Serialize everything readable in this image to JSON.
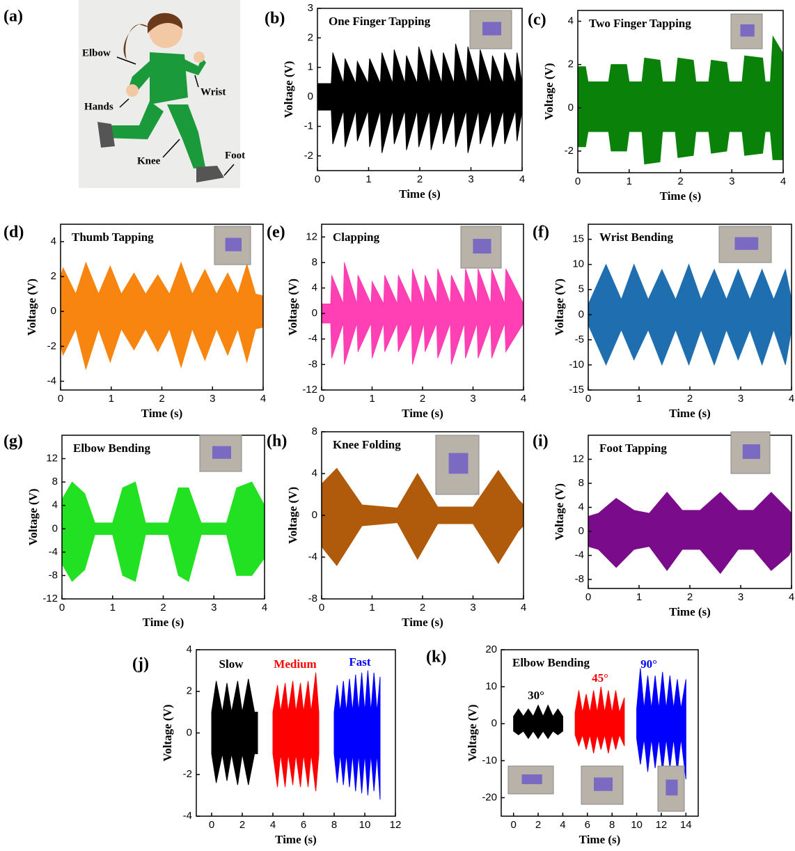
{
  "panel_a": {
    "label": "(a)",
    "body_labels": [
      "Elbow",
      "Wrist",
      "Hands",
      "Knee",
      "Foot"
    ]
  },
  "chart_data": [
    {
      "type": "area",
      "label": "(b)",
      "title": "One Finger Tapping",
      "xlabel": "Time (s)",
      "ylabel": "Voltage (V)",
      "xlim": [
        0,
        4
      ],
      "xticks": [
        0,
        1,
        2,
        3,
        4
      ],
      "ylim": [
        -2.5,
        3
      ],
      "yticks": [
        -2,
        -1,
        0,
        1,
        2,
        3
      ],
      "series": [
        {
          "color": "#000000",
          "x": [
            0,
            0.27,
            0.3,
            0.51,
            0.54,
            0.75,
            0.78,
            0.99,
            1.02,
            1.23,
            1.26,
            1.47,
            1.5,
            1.71,
            1.74,
            1.95,
            1.98,
            2.19,
            2.22,
            2.43,
            2.46,
            2.67,
            2.7,
            2.91,
            2.94,
            3.15,
            3.18,
            3.39,
            3.42,
            3.63,
            3.66,
            3.87,
            3.9,
            4
          ],
          "upper": [
            0.45,
            0.45,
            1.5,
            0.45,
            1.3,
            0.45,
            1.2,
            0.45,
            1.3,
            0.45,
            1.5,
            0.45,
            1.6,
            0.45,
            1.4,
            0.45,
            1.7,
            0.45,
            1.6,
            0.45,
            1.5,
            0.45,
            1.8,
            0.45,
            1.7,
            0.45,
            1.6,
            0.45,
            1.4,
            0.45,
            1.5,
            0.45,
            1.5,
            0.45
          ],
          "lower": [
            -0.45,
            -0.45,
            -1.6,
            -0.45,
            -1.7,
            -0.45,
            -1.5,
            -0.45,
            -1.7,
            -0.45,
            -1.9,
            -0.45,
            -1.6,
            -0.45,
            -1.8,
            -0.45,
            -1.7,
            -0.45,
            -1.8,
            -0.45,
            -1.6,
            -0.45,
            -1.7,
            -0.45,
            -1.9,
            -0.45,
            -1.6,
            -0.45,
            -1.7,
            -0.45,
            -1.6,
            -0.45,
            -1.5,
            -0.45
          ]
        }
      ]
    },
    {
      "type": "area",
      "label": "(c)",
      "title": "Two Finger Tapping",
      "xlabel": "Time (s)",
      "ylabel": "Voltage (V)",
      "xlim": [
        0,
        4
      ],
      "xticks": [
        0,
        1,
        2,
        3,
        4
      ],
      "ylim": [
        -3,
        4.5
      ],
      "yticks": [
        -2,
        0,
        2,
        4
      ],
      "series": [
        {
          "color": "#0a820a",
          "x": [
            0,
            0.15,
            0.2,
            0.6,
            0.65,
            0.95,
            1.0,
            1.25,
            1.3,
            1.6,
            1.65,
            1.9,
            1.95,
            2.25,
            2.3,
            2.55,
            2.6,
            2.9,
            2.95,
            3.2,
            3.25,
            3.6,
            3.65,
            3.75,
            3.8,
            4
          ],
          "upper": [
            1.9,
            1.9,
            1.2,
            1.2,
            2.0,
            2.0,
            1.2,
            1.2,
            2.3,
            2.2,
            1.2,
            1.2,
            2.3,
            2.2,
            1.2,
            1.2,
            2.2,
            2.1,
            1.2,
            1.2,
            2.4,
            2.3,
            1.2,
            1.2,
            3.3,
            2.5
          ],
          "lower": [
            -1.8,
            -1.8,
            -1.1,
            -1.1,
            -2.0,
            -2.0,
            -1.1,
            -1.1,
            -2.6,
            -2.5,
            -1.1,
            -1.1,
            -2.3,
            -2.2,
            -1.1,
            -1.1,
            -2.1,
            -2.0,
            -1.1,
            -1.1,
            -2.2,
            -2.1,
            -1.1,
            -1.1,
            -2.4,
            -2.4
          ]
        }
      ]
    },
    {
      "type": "area",
      "label": "(d)",
      "title": "Thumb Tapping",
      "xlabel": "Time (s)",
      "ylabel": "Voltage (V)",
      "xlim": [
        0,
        4
      ],
      "xticks": [
        0,
        1,
        2,
        3,
        4
      ],
      "ylim": [
        -4.5,
        5
      ],
      "yticks": [
        -4,
        -2,
        0,
        2,
        4
      ],
      "series": [
        {
          "color": "#f7850f",
          "x": [
            0,
            0.05,
            0.3,
            0.5,
            0.75,
            0.98,
            1.2,
            1.45,
            1.68,
            1.92,
            2.15,
            2.38,
            2.6,
            2.85,
            3.08,
            3.3,
            3.5,
            3.68,
            3.85,
            4
          ],
          "upper": [
            2,
            2.5,
            1,
            2.8,
            1,
            2.6,
            1,
            2.2,
            1,
            2.1,
            1,
            2.8,
            1,
            2.4,
            1,
            2.2,
            1,
            2.7,
            1,
            0.9
          ],
          "lower": [
            -2,
            -2.5,
            -1,
            -3.3,
            -1,
            -2.9,
            -1,
            -2.2,
            -1,
            -2.3,
            -1,
            -3.2,
            -1,
            -2.8,
            -1,
            -2.5,
            -1,
            -2.9,
            -1,
            -0.9
          ]
        }
      ]
    },
    {
      "type": "area",
      "label": "(e)",
      "title": "Clapping",
      "xlabel": "Time (s)",
      "ylabel": "Voltage (V)",
      "xlim": [
        0,
        4
      ],
      "xticks": [
        0,
        1,
        2,
        3,
        4
      ],
      "ylim": [
        -12,
        14
      ],
      "yticks": [
        -12,
        -8,
        -4,
        0,
        4,
        8,
        12
      ],
      "series": [
        {
          "color": "#ff3fb4",
          "x": [
            0,
            0.18,
            0.2,
            0.43,
            0.45,
            0.7,
            0.72,
            0.98,
            1.0,
            1.23,
            1.25,
            1.5,
            1.52,
            1.78,
            1.8,
            2.03,
            2.05,
            2.28,
            2.3,
            2.55,
            2.57,
            2.83,
            2.85,
            3.08,
            3.1,
            3.35,
            3.37,
            3.63,
            3.65,
            4
          ],
          "upper": [
            1.5,
            1.5,
            6,
            1.5,
            8,
            1.5,
            6,
            1.5,
            5,
            1.5,
            6,
            1.5,
            6,
            1.5,
            7,
            1.5,
            6,
            1.5,
            7,
            1.5,
            6,
            1.5,
            7,
            1.5,
            7,
            1.5,
            7,
            1.5,
            7,
            1.5
          ],
          "lower": [
            -1.5,
            -1.5,
            -7,
            -1.5,
            -8,
            -1.5,
            -6,
            -1.5,
            -7,
            -1.5,
            -6,
            -1.5,
            -6,
            -1.5,
            -8,
            -1.5,
            -6,
            -1.5,
            -7,
            -1.5,
            -8,
            -1.5,
            -7,
            -1.5,
            -7,
            -1.5,
            -7,
            -1.5,
            -6,
            -1.5
          ]
        }
      ]
    },
    {
      "type": "area",
      "label": "(f)",
      "title": "Wrist Bending",
      "xlabel": "Time (s)",
      "ylabel": "Voltage (V)",
      "xlim": [
        0,
        4
      ],
      "xticks": [
        0,
        1,
        2,
        3,
        4
      ],
      "ylim": [
        -15,
        18
      ],
      "yticks": [
        -15,
        -10,
        -5,
        0,
        5,
        10,
        15
      ],
      "series": [
        {
          "color": "#1f6fb0",
          "x": [
            0,
            0.35,
            0.65,
            0.9,
            1.18,
            1.45,
            1.72,
            1.98,
            2.22,
            2.48,
            2.72,
            2.95,
            3.18,
            3.42,
            3.65,
            3.88,
            4
          ],
          "upper": [
            2,
            10,
            3,
            10,
            3,
            9,
            3,
            10,
            3,
            9,
            3,
            9,
            3,
            9,
            3,
            9,
            3
          ],
          "lower": [
            -2,
            -10,
            -3,
            -9,
            -3,
            -10,
            -3,
            -10,
            -3,
            -10,
            -3,
            -9,
            -3,
            -10,
            -3,
            -10,
            -3
          ]
        }
      ]
    },
    {
      "type": "area",
      "label": "(g)",
      "title": "Elbow Bending",
      "xlabel": "Time (s)",
      "ylabel": "Voltage (V)",
      "xlim": [
        0,
        4
      ],
      "xticks": [
        0,
        1,
        2,
        3,
        4
      ],
      "ylim": [
        -12,
        16
      ],
      "yticks": [
        -12,
        -8,
        -4,
        0,
        4,
        8,
        12
      ],
      "series": [
        {
          "color": "#22e022",
          "x": [
            0,
            0.2,
            0.45,
            0.65,
            1.0,
            1.2,
            1.45,
            1.65,
            2.1,
            2.3,
            2.5,
            2.75,
            3.25,
            3.45,
            3.75,
            4
          ],
          "upper": [
            5,
            8,
            6,
            1,
            1,
            7,
            8,
            1,
            1,
            7,
            7,
            1,
            1,
            7,
            8,
            4
          ],
          "lower": [
            -6,
            -9,
            -7,
            -1,
            -1,
            -8,
            -9,
            -1,
            -1,
            -8,
            -9,
            -1,
            -1,
            -8,
            -8,
            -5
          ]
        }
      ]
    },
    {
      "type": "area",
      "label": "(h)",
      "title": "Knee Folding",
      "xlabel": "Time (s)",
      "ylabel": "Voltage (V)",
      "xlim": [
        0,
        4
      ],
      "xticks": [
        0,
        1,
        2,
        3,
        4
      ],
      "ylim": [
        -8,
        8
      ],
      "yticks": [
        -8,
        -4,
        0,
        4,
        8
      ],
      "series": [
        {
          "color": "#b05a0c",
          "x": [
            0,
            0.3,
            0.8,
            1.5,
            1.9,
            2.3,
            3.0,
            3.5,
            3.9,
            4
          ],
          "upper": [
            3,
            4.5,
            1,
            0.7,
            4,
            0.8,
            0.8,
            4.3,
            1.5,
            1
          ],
          "lower": [
            -3,
            -4.8,
            -1,
            -0.7,
            -4.2,
            -0.8,
            -0.8,
            -4.6,
            -1.5,
            -1
          ]
        }
      ]
    },
    {
      "type": "area",
      "label": "(i)",
      "title": "Foot Tapping",
      "xlabel": "Time (s)",
      "ylabel": "Voltage (V)",
      "xlim": [
        0,
        4
      ],
      "xticks": [
        0,
        1,
        2,
        3,
        4
      ],
      "ylim": [
        -9.5,
        16
      ],
      "yticks": [
        -8,
        -4,
        0,
        4,
        8,
        12
      ],
      "series": [
        {
          "color": "#7a0c8c",
          "x": [
            0,
            0.2,
            0.55,
            0.9,
            1.2,
            1.55,
            1.85,
            2.2,
            2.6,
            2.95,
            3.25,
            3.6,
            3.95,
            4
          ],
          "upper": [
            2.5,
            3,
            5.5,
            3.5,
            3,
            6.5,
            3.5,
            3.5,
            6.5,
            3.5,
            3.5,
            6.5,
            3.5,
            3
          ],
          "lower": [
            -2.5,
            -3,
            -6,
            -3,
            -2.5,
            -6.5,
            -3,
            -3,
            -7,
            -3,
            -3,
            -6.5,
            -4,
            -3
          ]
        }
      ]
    },
    {
      "type": "area",
      "label": "(j)",
      "xlabel": "Time (s)",
      "ylabel": "Voltage (V)",
      "xlim": [
        -1,
        12
      ],
      "xticks": [
        0,
        2,
        4,
        6,
        8,
        10,
        12
      ],
      "ylim": [
        -4,
        4
      ],
      "yticks": [
        -4,
        -2,
        0,
        2,
        4
      ],
      "series": [
        {
          "name": "Slow",
          "color": "#000000",
          "x": [
            0,
            0.3,
            0.7,
            1.0,
            1.3,
            1.7,
            2.0,
            2.4,
            2.8,
            3
          ],
          "upper": [
            1.0,
            2.5,
            1.0,
            2.4,
            1.0,
            2.5,
            1.0,
            2.6,
            1.0,
            1.0
          ],
          "lower": [
            -1,
            -2.4,
            -1,
            -2.3,
            -1,
            -2.5,
            -1,
            -2.5,
            -1,
            -1
          ]
        },
        {
          "name": "Medium",
          "color": "#ff0000",
          "x": [
            4,
            4.3,
            4.5,
            4.8,
            5.0,
            5.3,
            5.5,
            5.8,
            6.0,
            6.3,
            6.5,
            6.8,
            7
          ],
          "upper": [
            1,
            2.3,
            1,
            2.4,
            1,
            2.5,
            1,
            2.4,
            1,
            2.5,
            1,
            2.9,
            1
          ],
          "lower": [
            -1,
            -2.6,
            -1,
            -2.6,
            -1,
            -2.5,
            -1,
            -2.6,
            -1,
            -2.6,
            -1,
            -2.8,
            -1
          ]
        },
        {
          "name": "Fast",
          "color": "#0000ff",
          "x": [
            8,
            8.2,
            8.4,
            8.6,
            8.8,
            9.0,
            9.2,
            9.4,
            9.6,
            9.8,
            10.0,
            10.2,
            10.4,
            10.6,
            10.8,
            11
          ],
          "upper": [
            1,
            2.3,
            1,
            2.5,
            1,
            2.6,
            1,
            2.8,
            1,
            2.9,
            1,
            3.0,
            1,
            2.9,
            1,
            2.7
          ],
          "lower": [
            -1,
            -2.4,
            -1,
            -2.5,
            -1,
            -2.6,
            -1,
            -2.8,
            -1,
            -2.9,
            -1,
            -3.0,
            -1,
            -2.8,
            -1,
            -3.2
          ]
        }
      ]
    },
    {
      "type": "area",
      "label": "(k)",
      "title": "Elbow Bending",
      "xlabel": "Time (s)",
      "ylabel": "Voltage (V)",
      "xlim": [
        -1,
        15
      ],
      "xticks": [
        0,
        2,
        4,
        6,
        8,
        10,
        12,
        14
      ],
      "ylim": [
        -25,
        20
      ],
      "yticks": [
        -20,
        -10,
        0,
        10,
        20
      ],
      "series": [
        {
          "name": "30°",
          "color": "#000000",
          "x": [
            0,
            0.4,
            0.8,
            1.2,
            1.6,
            2.0,
            2.4,
            2.8,
            3.2,
            3.6,
            4
          ],
          "upper": [
            2,
            4,
            2,
            4,
            2,
            5,
            2,
            5,
            2,
            4,
            2
          ],
          "lower": [
            -2,
            -3,
            -2,
            -4,
            -2,
            -4,
            -2,
            -4,
            -2,
            -3,
            -2
          ]
        },
        {
          "name": "45°",
          "color": "#ff0000",
          "x": [
            5,
            5.3,
            5.6,
            5.9,
            6.2,
            6.5,
            6.8,
            7.1,
            7.4,
            7.7,
            8.0,
            8.3,
            8.6,
            9
          ],
          "upper": [
            3,
            9,
            3,
            8,
            3,
            9,
            3,
            10,
            3,
            9,
            3,
            9,
            3,
            7
          ],
          "lower": [
            -3,
            -6,
            -3,
            -7,
            -3,
            -8,
            -3,
            -7,
            -3,
            -8,
            -3,
            -7,
            -3,
            -6
          ]
        },
        {
          "name": "90°",
          "color": "#0000ff",
          "x": [
            10,
            10.3,
            10.6,
            10.9,
            11.2,
            11.5,
            11.8,
            12.1,
            12.4,
            12.7,
            13.0,
            13.3,
            13.6,
            14
          ],
          "upper": [
            4,
            15,
            4,
            13,
            4,
            13,
            4,
            14,
            4,
            13,
            4,
            12,
            4,
            12
          ],
          "lower": [
            -4,
            -11,
            -4,
            -13,
            -4,
            -12,
            -4,
            -13,
            -4,
            -12,
            -4,
            -13,
            -4,
            -15
          ]
        }
      ]
    }
  ]
}
